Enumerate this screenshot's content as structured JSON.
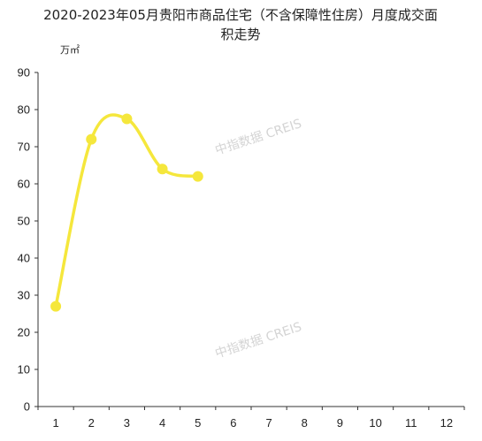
{
  "chart_data": {
    "type": "line",
    "title_line1": "2020-2023年05月贵阳市商品住宅（不含保障性住房）月度成交面",
    "title_line2": "积走势",
    "unit_label": "万㎡",
    "xlabel": "",
    "ylabel": "",
    "categories": [
      "1",
      "2",
      "3",
      "4",
      "5",
      "6",
      "7",
      "8",
      "9",
      "10",
      "11",
      "12"
    ],
    "yticks": [
      "0",
      "10",
      "20",
      "30",
      "40",
      "50",
      "60",
      "70",
      "80",
      "90"
    ],
    "ylim": [
      0,
      90
    ],
    "grid": false,
    "smooth": true,
    "series": [
      {
        "x": [
          1,
          2,
          3,
          4,
          5
        ],
        "values": [
          27,
          72,
          77.5,
          64,
          62
        ],
        "color": "#f5e73c"
      }
    ],
    "watermark": "中指数据 CREIS"
  }
}
